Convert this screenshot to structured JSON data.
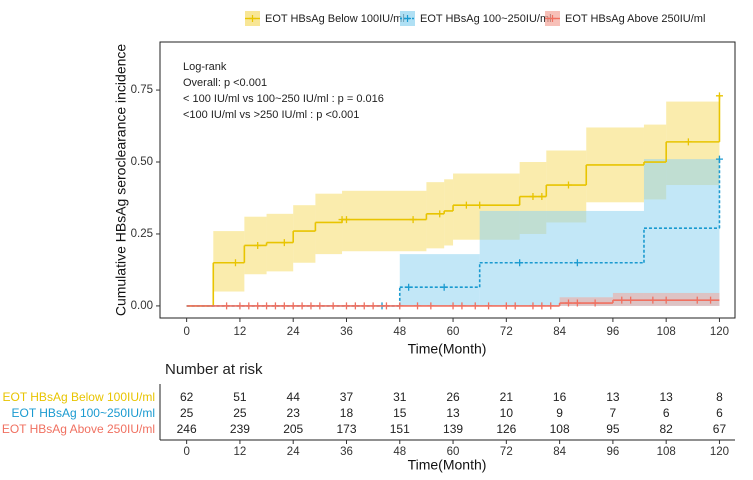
{
  "chart_data": {
    "type": "step",
    "y_label": "Cumulative HBsAg seroclearance incidence",
    "x_label": "Time(Month)",
    "annotation": [
      "Log-rank",
      "Overall: p <0.001",
      "< 100 IU/ml vs 100~250 IU/ml : p = 0.016",
      "<100 IU/ml vs >250 IU/ml : p <0.001"
    ],
    "legend": "top",
    "xlim": [
      -6,
      123.5
    ],
    "ylim": [
      -0.042,
      0.917
    ],
    "xticks": [
      0,
      12,
      24,
      36,
      48,
      60,
      72,
      84,
      96,
      108,
      120
    ],
    "yticks": [
      {
        "value": 0,
        "label": "0.00"
      },
      {
        "value": 0.25,
        "label": "0.25"
      },
      {
        "value": 0.5,
        "label": "0.50"
      },
      {
        "value": 0.75,
        "label": "0.75"
      }
    ],
    "series": [
      {
        "name": "EOT HBsAg Below 100IU/ml",
        "color": "#e8c400",
        "band_color": "#f5dc6a",
        "linestyle": "solid",
        "x": [
          0,
          6,
          13,
          18,
          24,
          29,
          35,
          54,
          58,
          60,
          75,
          81,
          90,
          103,
          108,
          120
        ],
        "values": [
          0,
          0.15,
          0.21,
          0.22,
          0.26,
          0.29,
          0.3,
          0.32,
          0.33,
          0.35,
          0.38,
          0.42,
          0.49,
          0.5,
          0.57,
          0.73
        ],
        "lower": [
          0,
          0.05,
          0.11,
          0.12,
          0.15,
          0.18,
          0.19,
          0.2,
          0.21,
          0.23,
          0.25,
          0.29,
          0.36,
          0.37,
          0.42,
          0.42
        ],
        "upper": [
          0,
          0.26,
          0.31,
          0.32,
          0.35,
          0.39,
          0.4,
          0.43,
          0.44,
          0.46,
          0.5,
          0.54,
          0.62,
          0.63,
          0.71,
          0.71
        ],
        "censor": [
          11,
          16,
          22,
          35,
          36,
          51,
          57,
          63,
          66,
          78,
          80,
          86,
          113,
          120
        ]
      },
      {
        "name": "EOT HBsAg 100~250IU/ml",
        "color": "#1a9ad0",
        "band_color": "#8fd3f0",
        "linestyle": "dotted",
        "x": [
          0,
          48,
          66,
          103,
          120
        ],
        "values": [
          0,
          0.065,
          0.15,
          0.27,
          0.51
        ],
        "lower": [
          0,
          0,
          0,
          0,
          0
        ],
        "upper": [
          0,
          0.18,
          0.33,
          0.51,
          0.51
        ],
        "censor": [
          44,
          50,
          58,
          75,
          88,
          120
        ]
      },
      {
        "name": "EOT HBsAg Above 250IU/ml",
        "color": "#f07060",
        "band_color": "#f4a59a",
        "linestyle": "solid",
        "x": [
          0,
          84,
          96,
          120
        ],
        "values": [
          0,
          0.01,
          0.02,
          0.02
        ],
        "lower": [
          0,
          0,
          0,
          0
        ],
        "upper": [
          0,
          0.03,
          0.045,
          0.045
        ],
        "censor": [
          9,
          12,
          14,
          16,
          18,
          20,
          22,
          24,
          26,
          28,
          30,
          33,
          36,
          38,
          40,
          42,
          45,
          48,
          52,
          55,
          60,
          62,
          65,
          68,
          72,
          74,
          78,
          80,
          82,
          86,
          88,
          92,
          98,
          100,
          105,
          108,
          115,
          118
        ]
      }
    ],
    "risk_table": {
      "title": "Number at risk",
      "rows": [
        [
          62,
          51,
          44,
          37,
          31,
          26,
          21,
          16,
          13,
          13,
          8
        ],
        [
          25,
          25,
          23,
          18,
          15,
          13,
          10,
          9,
          7,
          6,
          6
        ],
        [
          246,
          239,
          205,
          173,
          151,
          139,
          126,
          108,
          95,
          82,
          67
        ]
      ]
    }
  }
}
